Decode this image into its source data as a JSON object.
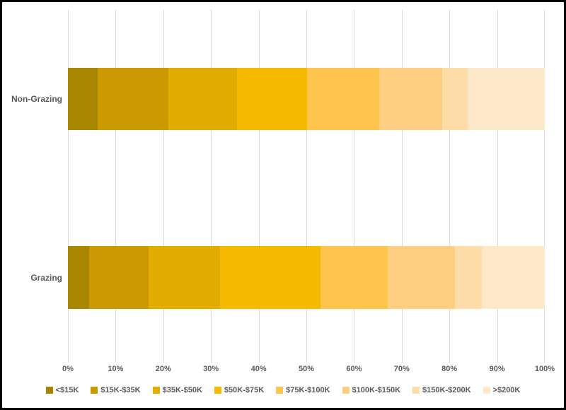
{
  "chart_data": {
    "type": "bar",
    "orientation": "horizontal",
    "stacked": true,
    "title": "",
    "categories": [
      "Non-Grazing",
      "Grazing"
    ],
    "series": [
      {
        "name": "<$15K",
        "color": "#A98600",
        "values": [
          6.2,
          4.5
        ]
      },
      {
        "name": "$15K-$35K",
        "color": "#CB9A00",
        "values": [
          14.8,
          12.4
        ]
      },
      {
        "name": "$35K-$50K",
        "color": "#E2AC00",
        "values": [
          14.5,
          15.0
        ]
      },
      {
        "name": "$50K-$75K",
        "color": "#F5B900",
        "values": [
          14.6,
          21.1
        ]
      },
      {
        "name": "$75K-$100K",
        "color": "#FFC44E",
        "values": [
          15.2,
          14.0
        ]
      },
      {
        "name": "$100K-$150K",
        "color": "#FECF82",
        "values": [
          13.2,
          14.2
        ]
      },
      {
        "name": "$150K-$200K",
        "color": "#FDDCA8",
        "values": [
          5.3,
          5.6
        ]
      },
      {
        "name": ">$200K",
        "color": "#FCE7C8",
        "values": [
          16.2,
          13.2
        ]
      }
    ],
    "x_axis": {
      "min": 0,
      "max": 100,
      "tick_labels": [
        "0%",
        "10%",
        "20%",
        "30%",
        "40%",
        "50%",
        "60%",
        "70%",
        "80%",
        "90%",
        "100%"
      ]
    },
    "legend_position": "bottom",
    "grid": true,
    "grid_color": "#D9D9D9",
    "text_color": "#595959",
    "border_color": "#000000"
  }
}
